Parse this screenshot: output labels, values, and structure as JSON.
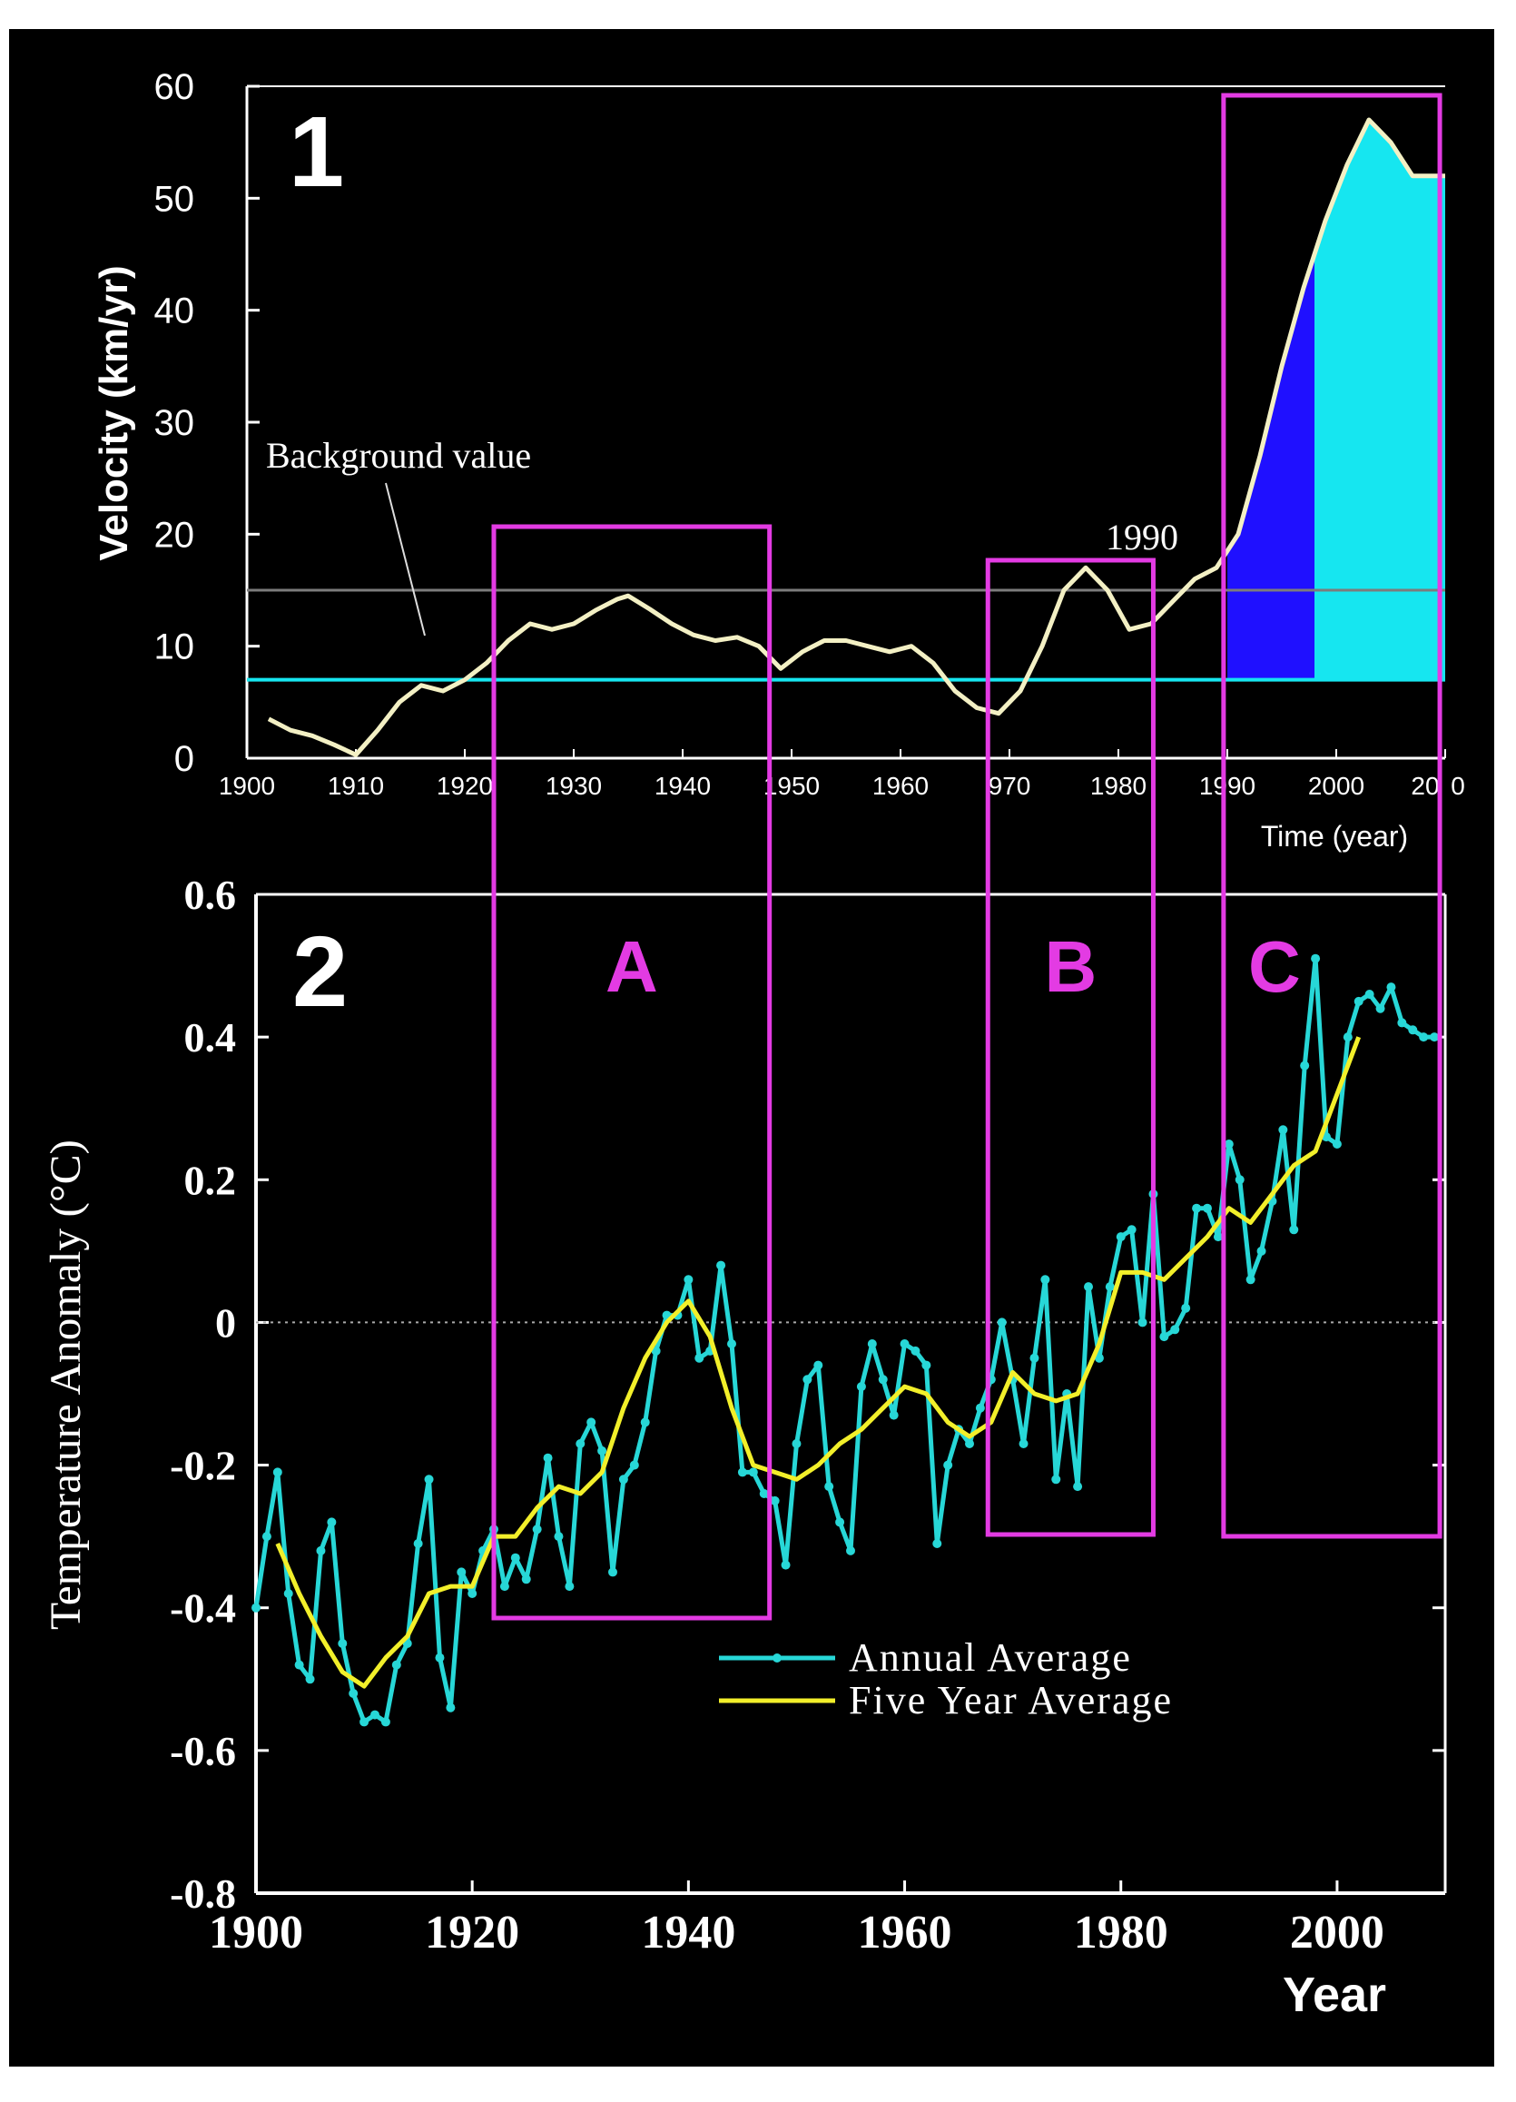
{
  "colors": {
    "background": "#000000",
    "axis": "#ffffff",
    "annual": "#27d7d7",
    "five_year": "#f2ef2a",
    "velocity_curve": "#f3f0c4",
    "region_box": "#e33be3",
    "cyan_fill": "#16e6f0",
    "blue_fill": "#1f10ff",
    "reference_line": "#7c7c7c"
  },
  "chart_data": [
    {
      "type": "line",
      "panel_label": "1",
      "xlabel": "Time (year)",
      "ylabel": "Velocity (km/yr)",
      "xlim": [
        1900,
        2010
      ],
      "ylim": [
        0,
        60
      ],
      "x_ticks": [
        "1900",
        "1910",
        "1920",
        "1930",
        "1940",
        "1950",
        "1960",
        "970",
        "1980",
        "1990",
        "2000",
        "20",
        "0"
      ],
      "x_tick_values": [
        1900,
        1910,
        1920,
        1930,
        1940,
        1950,
        1960,
        1970,
        1980,
        1990,
        2000,
        2010,
        2010
      ],
      "y_ticks": [
        "0",
        "10",
        "20",
        "30",
        "40",
        "50",
        "60"
      ],
      "y_tick_values": [
        0,
        10,
        20,
        30,
        40,
        50,
        60
      ],
      "background_label": "Background value",
      "year_annotation": "1990",
      "gray_reference_line": 15,
      "cyan_reference_line": 7,
      "blue_fill_range": [
        1990,
        1998
      ],
      "cyan_fill_range": [
        1998,
        2010
      ],
      "series": [
        {
          "x": [
            1902,
            1904,
            1906,
            1908,
            1910,
            1912,
            1914,
            1916,
            1918,
            1920,
            1922,
            1924,
            1926,
            1928,
            1930,
            1932,
            1934,
            1935,
            1937,
            1939,
            1941,
            1943,
            1945,
            1947,
            1949,
            1951,
            1953,
            1955,
            1957,
            1959,
            1961,
            1963,
            1965,
            1967,
            1969,
            1971,
            1973,
            1975,
            1977,
            1979,
            1981,
            1983,
            1985,
            1987,
            1989,
            1991,
            1993,
            1995,
            1997,
            1999,
            2001,
            2003,
            2005,
            2007,
            2010
          ],
          "values": [
            3.5,
            2.5,
            2.0,
            1.2,
            0.3,
            2.5,
            5.0,
            6.5,
            6.0,
            7.0,
            8.5,
            10.5,
            12.0,
            11.5,
            12.0,
            13.2,
            14.2,
            14.5,
            13.3,
            12.0,
            11.0,
            10.5,
            10.8,
            10.0,
            8.0,
            9.5,
            10.5,
            10.5,
            10.0,
            9.5,
            10.0,
            8.5,
            6.0,
            4.5,
            4.0,
            6.0,
            10.0,
            15.0,
            17.0,
            15.0,
            11.5,
            12.0,
            14.0,
            16.0,
            17.0,
            20.0,
            27.0,
            35.0,
            42.0,
            48.0,
            53.0,
            57.0,
            55.0,
            52.0,
            52.0
          ]
        }
      ]
    },
    {
      "type": "line",
      "panel_label": "2",
      "xlabel": "Year",
      "ylabel": "Temperature Anomaly (°C)",
      "xlim": [
        1900,
        2010
      ],
      "ylim": [
        -0.8,
        0.6
      ],
      "x_ticks": [
        "1900",
        "1920",
        "1940",
        "1960",
        "1980",
        "2000"
      ],
      "x_tick_values": [
        1900,
        1920,
        1940,
        1960,
        1980,
        2000
      ],
      "y_ticks": [
        "0.6",
        "0.4",
        "0.2",
        "0",
        "-0.2",
        "-0.4",
        "-0.6",
        "-0.8"
      ],
      "y_tick_values": [
        0.6,
        0.4,
        0.2,
        0,
        -0.2,
        -0.4,
        -0.6,
        -0.8
      ],
      "zero_line": true,
      "legend": {
        "position": "bottom-right",
        "entries": [
          "Annual Average",
          "Five Year Average"
        ]
      },
      "series": [
        {
          "name": "Annual Average",
          "x": [
            1900,
            1901,
            1902,
            1903,
            1904,
            1905,
            1906,
            1907,
            1908,
            1909,
            1910,
            1911,
            1912,
            1913,
            1914,
            1915,
            1916,
            1917,
            1918,
            1919,
            1920,
            1921,
            1922,
            1923,
            1924,
            1925,
            1926,
            1927,
            1928,
            1929,
            1930,
            1931,
            1932,
            1933,
            1934,
            1935,
            1936,
            1937,
            1938,
            1939,
            1940,
            1941,
            1942,
            1943,
            1944,
            1945,
            1946,
            1947,
            1948,
            1949,
            1950,
            1951,
            1952,
            1953,
            1954,
            1955,
            1956,
            1957,
            1958,
            1959,
            1960,
            1961,
            1962,
            1963,
            1964,
            1965,
            1966,
            1967,
            1968,
            1969,
            1970,
            1971,
            1972,
            1973,
            1974,
            1975,
            1976,
            1977,
            1978,
            1979,
            1980,
            1981,
            1982,
            1983,
            1984,
            1985,
            1986,
            1987,
            1988,
            1989,
            1990,
            1991,
            1992,
            1993,
            1994,
            1995,
            1996,
            1997,
            1998,
            1999,
            2000,
            2001,
            2002,
            2003,
            2004,
            2005,
            2006,
            2007,
            2008,
            2009
          ],
          "values": [
            -0.4,
            -0.3,
            -0.21,
            -0.38,
            -0.48,
            -0.5,
            -0.32,
            -0.28,
            -0.45,
            -0.52,
            -0.56,
            -0.55,
            -0.56,
            -0.48,
            -0.45,
            -0.31,
            -0.22,
            -0.47,
            -0.54,
            -0.35,
            -0.38,
            -0.32,
            -0.29,
            -0.37,
            -0.33,
            -0.36,
            -0.29,
            -0.19,
            -0.3,
            -0.37,
            -0.17,
            -0.14,
            -0.18,
            -0.35,
            -0.22,
            -0.2,
            -0.14,
            -0.04,
            0.01,
            0.01,
            0.06,
            -0.05,
            -0.04,
            0.08,
            -0.03,
            -0.21,
            -0.21,
            -0.24,
            -0.25,
            -0.34,
            -0.17,
            -0.08,
            -0.06,
            -0.23,
            -0.28,
            -0.32,
            -0.09,
            -0.03,
            -0.08,
            -0.13,
            -0.03,
            -0.04,
            -0.06,
            -0.31,
            -0.2,
            -0.15,
            -0.17,
            -0.12,
            -0.08,
            0.0,
            -0.08,
            -0.17,
            -0.05,
            0.06,
            -0.22,
            -0.1,
            -0.23,
            0.05,
            -0.05,
            0.05,
            0.12,
            0.13,
            0.0,
            0.18,
            -0.02,
            -0.01,
            0.02,
            0.16,
            0.16,
            0.12,
            0.25,
            0.2,
            0.06,
            0.1,
            0.17,
            0.27,
            0.13,
            0.36,
            0.51,
            0.26,
            0.25,
            0.4,
            0.45,
            0.46,
            0.44,
            0.47,
            0.42,
            0.41,
            0.4,
            0.4
          ]
        },
        {
          "name": "Five Year Average",
          "x": [
            1902,
            1904,
            1906,
            1908,
            1910,
            1912,
            1914,
            1916,
            1918,
            1920,
            1922,
            1924,
            1926,
            1928,
            1930,
            1932,
            1934,
            1936,
            1938,
            1940,
            1942,
            1944,
            1946,
            1948,
            1950,
            1952,
            1954,
            1956,
            1958,
            1960,
            1962,
            1964,
            1966,
            1968,
            1970,
            1972,
            1974,
            1976,
            1978,
            1980,
            1982,
            1984,
            1986,
            1988,
            1990,
            1992,
            1994,
            1996,
            1998,
            2000,
            2002
          ],
          "values": [
            -0.31,
            -0.38,
            -0.44,
            -0.49,
            -0.51,
            -0.47,
            -0.44,
            -0.38,
            -0.37,
            -0.37,
            -0.3,
            -0.3,
            -0.26,
            -0.23,
            -0.24,
            -0.21,
            -0.12,
            -0.05,
            0.0,
            0.03,
            -0.02,
            -0.12,
            -0.2,
            -0.21,
            -0.22,
            -0.2,
            -0.17,
            -0.15,
            -0.12,
            -0.09,
            -0.1,
            -0.14,
            -0.16,
            -0.14,
            -0.07,
            -0.1,
            -0.11,
            -0.1,
            -0.03,
            0.07,
            0.07,
            0.06,
            0.09,
            0.12,
            0.16,
            0.14,
            0.18,
            0.22,
            0.24,
            0.32,
            0.4
          ]
        }
      ]
    }
  ],
  "regions": [
    {
      "label": "A",
      "x_range": [
        1922,
        1947.5
      ]
    },
    {
      "label": "B",
      "x_range": [
        1967.7,
        1983
      ]
    },
    {
      "label": "C",
      "x_range": [
        1989.5,
        2009.5
      ]
    }
  ]
}
